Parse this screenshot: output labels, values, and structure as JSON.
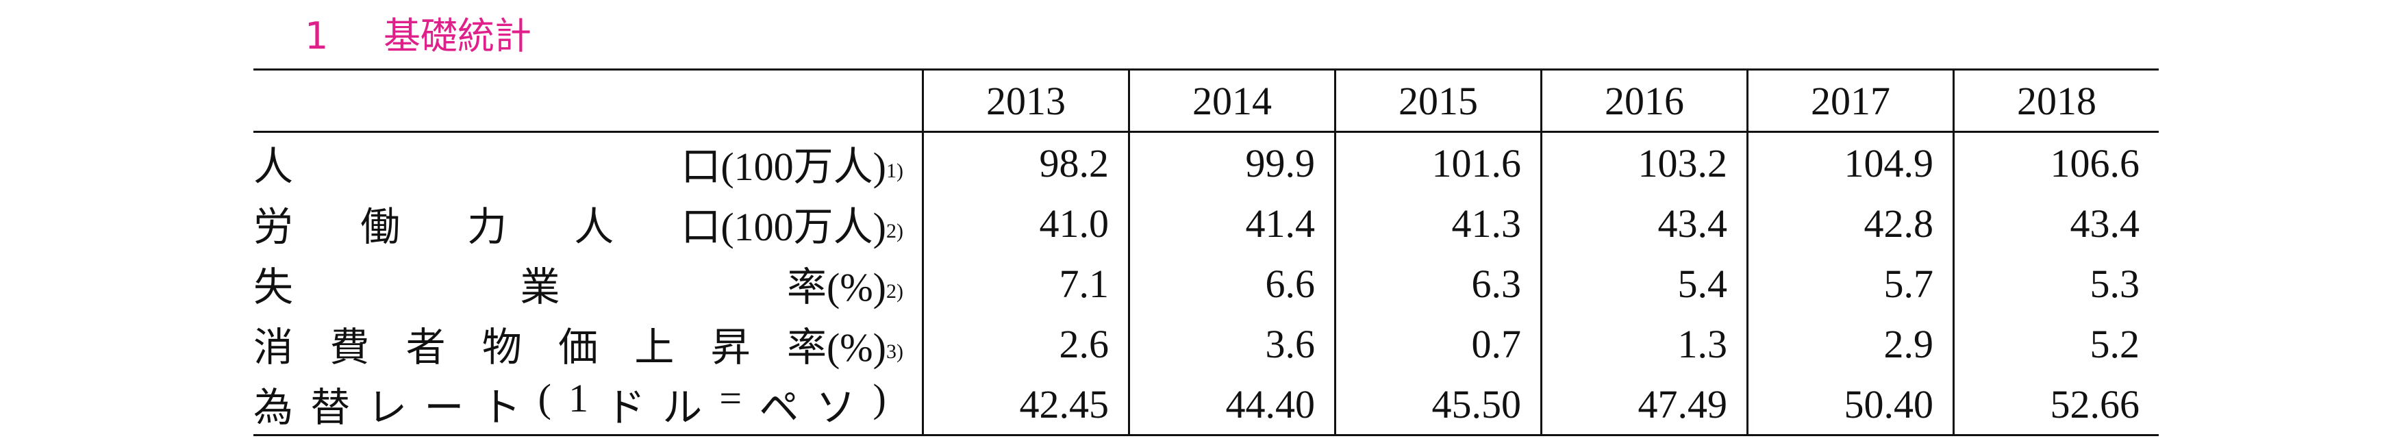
{
  "header": {
    "number": "1",
    "title": "基礎統計"
  },
  "table": {
    "columns": [
      "2013",
      "2014",
      "2015",
      "2016",
      "2017",
      "2018"
    ],
    "rows": [
      {
        "label": [
          "人",
          "口(100万人)"
        ],
        "note": "1)",
        "values": [
          "98.2",
          "99.9",
          "101.6",
          "103.2",
          "104.9",
          "106.6"
        ]
      },
      {
        "label": [
          "労",
          "働",
          "力",
          "人",
          "口(100万人)"
        ],
        "note": "2)",
        "values": [
          "41.0",
          "41.4",
          "41.3",
          "43.4",
          "42.8",
          "43.4"
        ]
      },
      {
        "label": [
          "失",
          "業",
          "率(%)"
        ],
        "note": "2)",
        "values": [
          "7.1",
          "6.6",
          "6.3",
          "5.4",
          "5.7",
          "5.3"
        ]
      },
      {
        "label": [
          "消",
          "費",
          "者",
          "物",
          "価",
          "上",
          "昇",
          "率(%)"
        ],
        "note": "3)",
        "values": [
          "2.6",
          "3.6",
          "0.7",
          "1.3",
          "2.9",
          "5.2"
        ]
      },
      {
        "label": [
          "為",
          "替",
          "レ",
          "ー",
          "ト",
          "(",
          "1",
          "ド",
          "ル",
          "=",
          "ペ",
          "ソ",
          ")"
        ],
        "note": null,
        "values": [
          "42.45",
          "44.40",
          "45.50",
          "47.49",
          "50.40",
          "52.66"
        ]
      }
    ]
  }
}
